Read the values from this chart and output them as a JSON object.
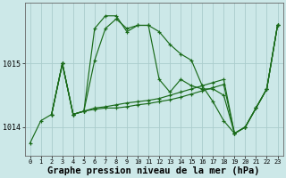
{
  "background_color": "#cce8e8",
  "grid_color": "#aacccc",
  "line_color": "#1a6b1a",
  "marker_color": "#1a6b1a",
  "xlabel": "Graphe pression niveau de la mer (hPa)",
  "xlabel_fontsize": 7.5,
  "ylabel_ticks": [
    1014,
    1015
  ],
  "xlim": [
    -0.5,
    23.5
  ],
  "ylim": [
    1013.55,
    1015.95
  ],
  "xticks": [
    0,
    1,
    2,
    3,
    4,
    5,
    6,
    7,
    8,
    9,
    10,
    11,
    12,
    13,
    14,
    15,
    16,
    17,
    18,
    19,
    20,
    21,
    22,
    23
  ],
  "series": [
    {
      "x": [
        0,
        1,
        2,
        3,
        4,
        5,
        6,
        7,
        8,
        9,
        10,
        11,
        12,
        13,
        14,
        15,
        16,
        17,
        18,
        19,
        20,
        21,
        22,
        23
      ],
      "y": [
        1013.75,
        1014.1,
        1014.2,
        1015.0,
        1014.2,
        1014.25,
        1015.05,
        1015.55,
        1015.7,
        1015.55,
        1015.6,
        1015.6,
        1015.5,
        1015.3,
        1015.15,
        1015.05,
        1014.65,
        1014.4,
        1014.1,
        1013.9,
        1014.0,
        1014.3,
        1014.6,
        1015.6
      ]
    },
    {
      "x": [
        2,
        3,
        4,
        5,
        6,
        7,
        8,
        9,
        10,
        11,
        12,
        13,
        14,
        15,
        16,
        17,
        18,
        19,
        20,
        21,
        22,
        23
      ],
      "y": [
        1014.2,
        1015.0,
        1014.2,
        1014.25,
        1015.55,
        1015.75,
        1015.75,
        1015.5,
        1015.6,
        1015.6,
        1014.75,
        1014.55,
        1014.75,
        1014.65,
        1014.6,
        1014.6,
        1014.5,
        1013.9,
        1014.0,
        1014.3,
        1014.6,
        1015.6
      ]
    },
    {
      "x": [
        2,
        3,
        4,
        5,
        6,
        7,
        8,
        9,
        10,
        11,
        12,
        13,
        14,
        15,
        16,
        17,
        18,
        19,
        20,
        21,
        22,
        23
      ],
      "y": [
        1014.2,
        1015.0,
        1014.2,
        1014.25,
        1014.3,
        1014.32,
        1014.35,
        1014.38,
        1014.4,
        1014.42,
        1014.45,
        1014.5,
        1014.55,
        1014.6,
        1014.65,
        1014.7,
        1014.75,
        1013.9,
        1014.0,
        1014.3,
        1014.6,
        1015.6
      ]
    },
    {
      "x": [
        2,
        3,
        4,
        5,
        6,
        7,
        8,
        9,
        10,
        11,
        12,
        13,
        14,
        15,
        16,
        17,
        18,
        19,
        20,
        21,
        22,
        23
      ],
      "y": [
        1014.2,
        1015.0,
        1014.2,
        1014.25,
        1014.28,
        1014.3,
        1014.3,
        1014.32,
        1014.35,
        1014.37,
        1014.4,
        1014.43,
        1014.47,
        1014.52,
        1014.57,
        1014.62,
        1014.67,
        1013.9,
        1014.0,
        1014.3,
        1014.6,
        1015.6
      ]
    }
  ]
}
